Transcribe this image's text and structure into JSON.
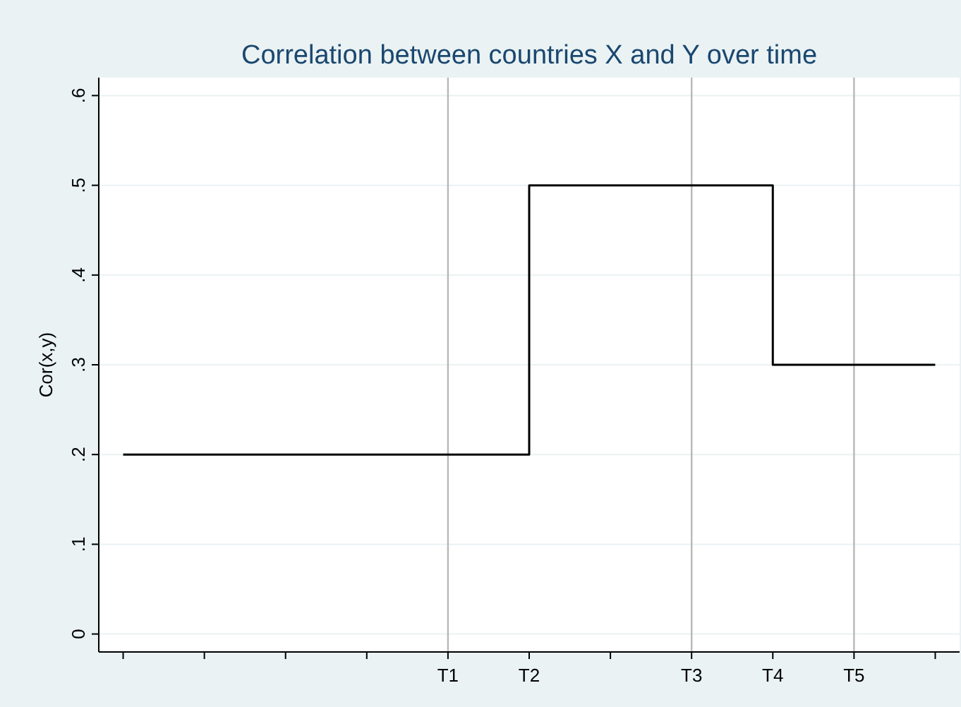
{
  "chart_data": {
    "type": "step",
    "title": "Correlation between countries X and Y over time",
    "ylabel": "Cor(x,y)",
    "categories": [
      null,
      null,
      null,
      null,
      "T1",
      "T2",
      null,
      "T3",
      "T4",
      "T5",
      null
    ],
    "series": [
      {
        "color": "#000000",
        "values": [
          0.2,
          0.2,
          0.2,
          0.2,
          0.2,
          0.5,
          0.5,
          0.5,
          0.3,
          0.3,
          0.3
        ]
      }
    ],
    "ylim": [
      -0.02,
      0.62
    ],
    "yticks": [
      0,
      {
        "value": 0.1,
        "label": ".1"
      },
      {
        "value": 0.2,
        "label": ".2"
      },
      {
        "value": 0.3,
        "label": ".3"
      },
      {
        "value": 0.4,
        "label": ".4"
      },
      {
        "value": 0.5,
        "label": ".5"
      },
      {
        "value": 0.6,
        "label": ".6"
      }
    ],
    "ref_lines": [
      {
        "axis": "x",
        "value": "T1",
        "color": "#b8b8b8"
      },
      {
        "axis": "x",
        "value": "T3",
        "color": "#b8b8b8"
      },
      {
        "axis": "x",
        "value": "T5",
        "color": "#b8b8b8"
      }
    ],
    "grid": "y"
  }
}
